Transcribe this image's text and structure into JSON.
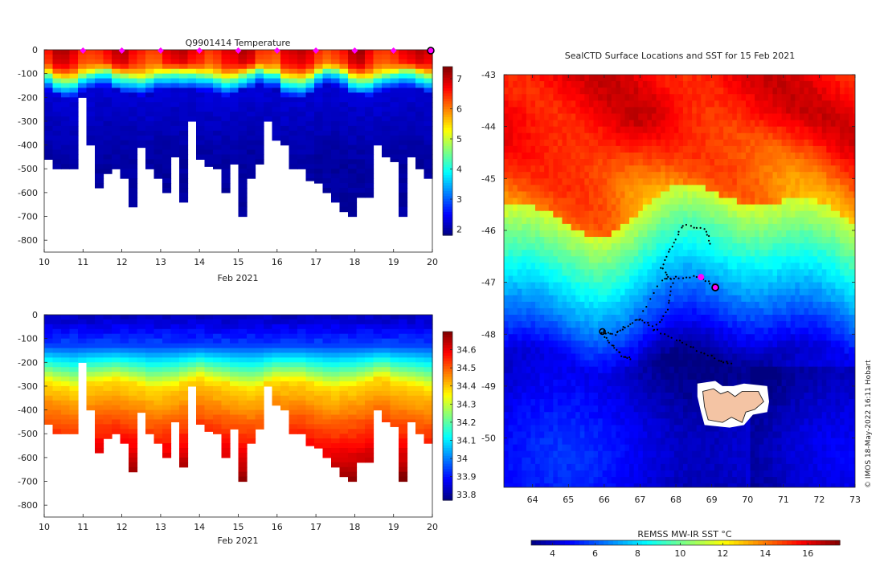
{
  "chart_data": [
    {
      "type": "heatmap",
      "id": "temperature-section",
      "title": "Q9901414  Temperature",
      "xlabel": "Feb 2021",
      "ylabel": "",
      "xlim": [
        10,
        20
      ],
      "ylim": [
        -850,
        0
      ],
      "x_ticks": [
        10,
        11,
        12,
        13,
        14,
        15,
        16,
        17,
        18,
        19,
        20
      ],
      "y_ticks": [
        0,
        -100,
        -200,
        -300,
        -400,
        -500,
        -600,
        -700,
        -800
      ],
      "colorbar": {
        "min": 1.8,
        "max": 7.4,
        "ticks": [
          2,
          3,
          4,
          5,
          6,
          7
        ],
        "colormap": "jet"
      },
      "profile_markers_x": [
        11,
        12,
        13,
        14,
        15,
        16,
        17,
        18,
        19
      ],
      "profile_marker_color": "#ff00ff",
      "current_profile_x": 20
    },
    {
      "type": "heatmap",
      "id": "salinity-section",
      "title": "",
      "xlabel": "Feb 2021",
      "ylabel": "",
      "xlim": [
        10,
        20
      ],
      "ylim": [
        -850,
        0
      ],
      "x_ticks": [
        10,
        11,
        12,
        13,
        14,
        15,
        16,
        17,
        18,
        19,
        20
      ],
      "y_ticks": [
        0,
        -100,
        -200,
        -300,
        -400,
        -500,
        -600,
        -700,
        -800
      ],
      "colorbar": {
        "min": 33.77,
        "max": 34.7,
        "ticks": [
          33.8,
          33.9,
          34,
          34.1,
          34.2,
          34.3,
          34.4,
          34.5,
          34.6
        ],
        "colormap": "jet"
      }
    },
    {
      "type": "heatmap",
      "id": "sst-map",
      "title": "SealCTD Surface Locations and SST for 15 Feb 2021",
      "xlabel": "",
      "ylabel": "",
      "xlim": [
        63.2,
        73
      ],
      "ylim": [
        -50.95,
        -43
      ],
      "x_ticks": [
        64,
        65,
        66,
        67,
        68,
        69,
        70,
        71,
        72,
        73
      ],
      "y_ticks": [
        -43,
        -44,
        -45,
        -46,
        -47,
        -48,
        -49,
        -50
      ],
      "colorbar": {
        "label": "REMSS MW-IR SST °C",
        "min": 3,
        "max": 17.5,
        "ticks": [
          4,
          6,
          8,
          10,
          12,
          14,
          16
        ],
        "colormap": "jet"
      },
      "front_latitude_note": "warm water north of ~-45.8, cold south",
      "island_label": "",
      "track_start": [
        65.95,
        -47.95
      ],
      "current_position": [
        69.1,
        -47.1
      ],
      "latest_fix": [
        68.7,
        -46.9
      ]
    }
  ],
  "profile_depths": [
    -460,
    -500,
    -500,
    -500,
    -200,
    -400,
    -580,
    -520,
    -500,
    -540,
    -660,
    -410,
    -500,
    -540,
    -600,
    -450,
    -640,
    -300,
    -460,
    -490,
    -500,
    -600,
    -480,
    -700,
    -540,
    -480,
    -300,
    -380,
    -400,
    -500,
    -500,
    -550,
    -560,
    -600,
    -640,
    -680,
    -700,
    -620,
    -620,
    -400,
    -450,
    -470,
    -700,
    -450,
    -500,
    -540
  ],
  "credit": "© IMOS 18-May-2022 16:11 Hobart"
}
